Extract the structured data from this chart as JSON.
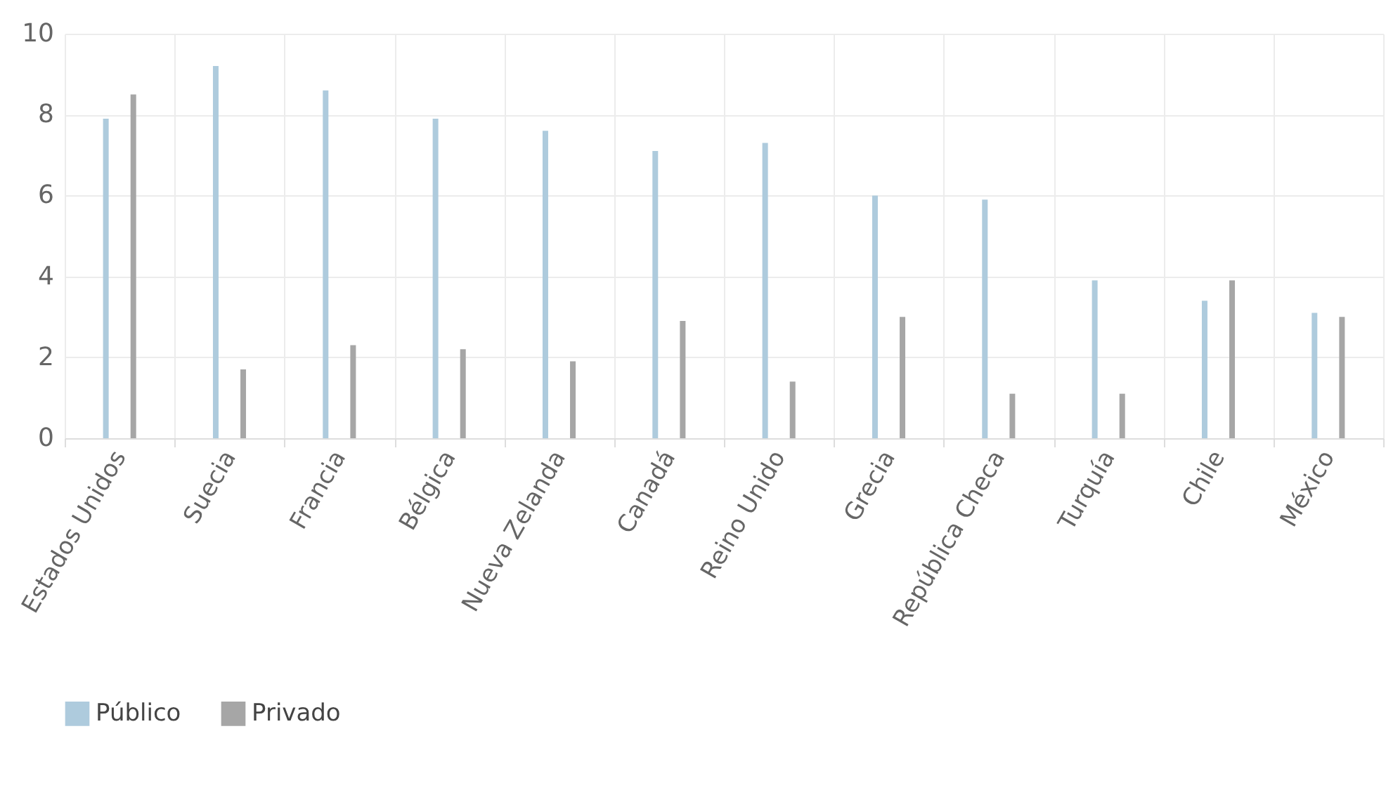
{
  "chart_data": {
    "type": "bar",
    "categories": [
      "Estados Unidos",
      "Suecia",
      "Francia",
      "Bélgica",
      "Nueva Zelanda",
      "Canadá",
      "Reino Unido",
      "Grecia",
      "República Checa",
      "Turquía",
      "Chile",
      "México"
    ],
    "series": [
      {
        "name": "Público",
        "color": "#aecbdd",
        "values": [
          7.9,
          9.2,
          8.6,
          7.9,
          7.6,
          7.1,
          7.3,
          6.0,
          5.9,
          3.9,
          3.4,
          3.1
        ]
      },
      {
        "name": "Privado",
        "color": "#a6a6a6",
        "values": [
          8.5,
          1.7,
          2.3,
          2.2,
          1.9,
          2.9,
          1.4,
          3.0,
          1.1,
          1.1,
          3.9,
          3.0
        ]
      }
    ],
    "ylim": [
      0,
      10
    ],
    "yticks": [
      0,
      2,
      4,
      6,
      8,
      10
    ],
    "grid": true,
    "legend": "bottom"
  }
}
